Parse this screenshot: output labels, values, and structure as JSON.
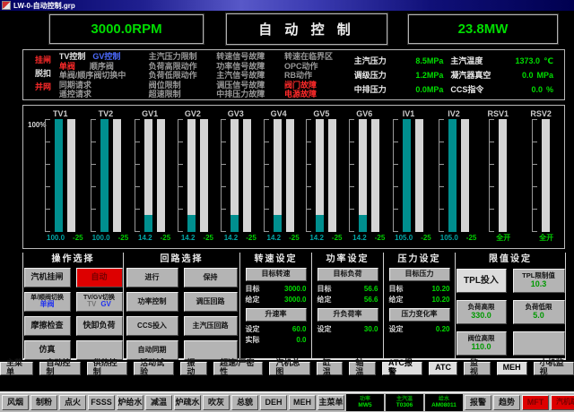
{
  "window": {
    "title": "LW-0-自动控制.grp"
  },
  "top": {
    "rpm": "3000.0RPM",
    "mode": "自 动 控 制",
    "mw": "23.8MW"
  },
  "status": {
    "breaker": [
      {
        "label": "挂闸",
        "state": "red"
      },
      {
        "label": "脱扣",
        "state": "white"
      },
      {
        "label": "并网",
        "state": "red"
      }
    ],
    "control": {
      "row1": [
        {
          "label": "TV控制",
          "state": "white"
        },
        {
          "label": "GV控制",
          "state": "blue"
        }
      ],
      "row2": [
        {
          "label": "单阀",
          "state": "red"
        },
        {
          "label": "顺序阀",
          "state": "dim"
        }
      ],
      "rows": [
        "单阀/顺序阀切换中",
        "同期请求",
        "遥控请求"
      ]
    },
    "limits": [
      "主汽压力限制",
      "负荷高限动作",
      "负荷低限动作",
      "阀位限制",
      "超速限制"
    ],
    "signals": [
      "转速信号故障",
      "功率信号故障",
      "主汽信号故障",
      "调压信号故障",
      "中排压力故障"
    ],
    "alarms": [
      {
        "label": "转速在临界区",
        "state": "dim"
      },
      {
        "label": "OPC动作",
        "state": "dim"
      },
      {
        "label": "RB动作",
        "state": "dim"
      },
      {
        "label": "阀门故障",
        "state": "red"
      },
      {
        "label": "电源故障",
        "state": "red"
      }
    ],
    "pressures": [
      {
        "label": "主汽压力",
        "value": "8.5MPa"
      },
      {
        "label": "调级压力",
        "value": "1.2MPa"
      },
      {
        "label": "中排压力",
        "value": "0.0MPa"
      }
    ],
    "misc": [
      {
        "label": "主汽温度",
        "value": "1373.0",
        "unit": "℃"
      },
      {
        "label": "凝汽器真空",
        "value": "0.0",
        "unit": "MPa"
      },
      {
        "label": "CCS指令",
        "value": "0.0",
        "unit": "%"
      }
    ]
  },
  "valves": {
    "axis_label": "100%",
    "items": [
      {
        "name": "TV1",
        "fill_pct": 100,
        "value": "100.0",
        "ref": "-25",
        "bars": 2
      },
      {
        "name": "TV2",
        "fill_pct": 100,
        "value": "100.0",
        "ref": "-25",
        "bars": 2
      },
      {
        "name": "GV1",
        "fill_pct": 15,
        "value": "14.2",
        "ref": "-25",
        "bars": 2
      },
      {
        "name": "GV2",
        "fill_pct": 15,
        "value": "14.2",
        "ref": "-25",
        "bars": 2
      },
      {
        "name": "GV3",
        "fill_pct": 15,
        "value": "14.2",
        "ref": "-25",
        "bars": 2
      },
      {
        "name": "GV4",
        "fill_pct": 15,
        "value": "14.2",
        "ref": "-25",
        "bars": 2
      },
      {
        "name": "GV5",
        "fill_pct": 15,
        "value": "14.2",
        "ref": "-25",
        "bars": 2
      },
      {
        "name": "GV6",
        "fill_pct": 15,
        "value": "14.2",
        "ref": "-25",
        "bars": 2
      },
      {
        "name": "IV1",
        "fill_pct": 100,
        "value": "105.0",
        "ref": "-25",
        "bars": 2
      },
      {
        "name": "IV2",
        "fill_pct": 100,
        "value": "105.0",
        "ref": "-25",
        "bars": 2
      },
      {
        "name": "RSV1",
        "fill_pct": 0,
        "value": "全开",
        "ref": "",
        "bars": 1
      },
      {
        "name": "RSV2",
        "fill_pct": 0,
        "value": "全开",
        "ref": "",
        "bars": 1
      }
    ]
  },
  "panels": {
    "operation": {
      "title": "操作选择",
      "buttons": [
        {
          "label": "汽机挂闸",
          "style": "normal"
        },
        {
          "label": "自动",
          "style": "red"
        },
        {
          "label": "单/顺阀切换",
          "style": "two",
          "sub": [
            {
              "text": "单阀",
              "color": "blue"
            }
          ]
        },
        {
          "label": "TV/GV切换",
          "style": "two",
          "sub": [
            {
              "text": "TV",
              "color": "dim"
            },
            {
              "text": "GV",
              "color": "blue"
            }
          ]
        },
        {
          "label": "摩擦检查",
          "style": "normal"
        },
        {
          "label": "快卸负荷",
          "style": "normal"
        },
        {
          "label": "仿真",
          "style": "normal"
        },
        {
          "label": "",
          "style": "empty"
        }
      ]
    },
    "loop": {
      "title": "回路选择",
      "buttons": [
        {
          "label": "进行"
        },
        {
          "label": "保持"
        },
        {
          "label": "功率控制"
        },
        {
          "label": "调压回路"
        },
        {
          "label": "CCS投入"
        },
        {
          "label": "主汽压回路"
        },
        {
          "label": "自动同期"
        },
        {
          "label": "",
          "style": "empty"
        }
      ]
    },
    "speed": {
      "title": "转速设定",
      "target_button": "目标转速",
      "rows1": [
        {
          "label": "目标",
          "value": "3000.0"
        },
        {
          "label": "给定",
          "value": "3000.0"
        }
      ],
      "rate_button": "升速率",
      "rows2": [
        {
          "label": "设定",
          "value": "60.0"
        },
        {
          "label": "实际",
          "value": "0.0"
        }
      ]
    },
    "power": {
      "title": "功率设定",
      "target_button": "目标负荷",
      "rows1": [
        {
          "label": "目标",
          "value": "56.6"
        },
        {
          "label": "给定",
          "value": "56.6"
        }
      ],
      "rate_button": "升负荷率",
      "rows2": [
        {
          "label": "设定",
          "value": "30.0"
        }
      ]
    },
    "pressure": {
      "title": "压力设定",
      "target_button": "目标压力",
      "rows1": [
        {
          "label": "目标",
          "value": "10.20"
        },
        {
          "label": "给定",
          "value": "10.20"
        }
      ],
      "rate_button": "压力变化率",
      "rows2": [
        {
          "label": "设定",
          "value": "0.20"
        }
      ]
    },
    "limit": {
      "title": "限值设定",
      "buttons": [
        {
          "label": "TPL投入",
          "style": "plain"
        },
        {
          "label": "TPL限制值",
          "value": "10.3"
        },
        {
          "label": "负荷高限",
          "value": "330.0"
        },
        {
          "label": "负荷低限",
          "value": "5.0"
        },
        {
          "label": "阀位高限",
          "value": "110.0"
        },
        {
          "label": "",
          "style": "empty"
        }
      ]
    }
  },
  "nav": [
    {
      "label": "主菜单"
    },
    {
      "label": "自动控制"
    },
    {
      "label": "供热控制"
    },
    {
      "label": "活动试验"
    },
    {
      "label": "振动"
    },
    {
      "label": "超速/严密性"
    },
    {
      "label": "汽机总图"
    },
    {
      "label": "缸温"
    },
    {
      "label": "轴温"
    },
    {
      "label": "ATC报警",
      "bright": true
    },
    {
      "label": "ATC",
      "bright": true
    },
    {
      "label": "监视"
    },
    {
      "label": "MEH",
      "bright": true
    },
    {
      "label": "小机监视"
    }
  ],
  "taskbar": {
    "buttons": [
      "风烟",
      "制粉",
      "点火",
      "FSSS",
      "炉给水",
      "减温",
      "炉疏水",
      "吹灰",
      "总貌",
      "DEH",
      "MEH",
      "主菜单"
    ],
    "cells": [
      {
        "label": "功率",
        "value": "MW5"
      },
      {
        "label": "主汽温",
        "value": "T0306"
      },
      {
        "label": "给水",
        "value": "AM08011"
      }
    ],
    "right_buttons": [
      "报警",
      "趋势"
    ],
    "alarm_buttons": [
      "MFT",
      "汽机跳闸"
    ]
  },
  "colors": {
    "accent_green": "#00dd00",
    "bar_teal": "#008f8f",
    "alarm_red": "#dd0000",
    "link_blue": "#2233ee"
  }
}
